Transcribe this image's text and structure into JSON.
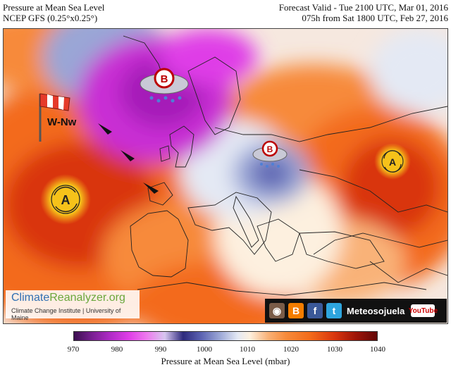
{
  "header": {
    "left_line1": "Pressure at Mean Sea Level",
    "left_line2": "NCEP GFS (0.25°x0.25°)",
    "right_line1": "Forecast Valid - Tue 2100 UTC, Mar 01, 2016",
    "right_line2": "075h from Sat 1800 UTC, Feb 27, 2016"
  },
  "annotations": {
    "wind_label": "W-Nw",
    "high_symbol_letter": "A",
    "low_symbol_letter": "B"
  },
  "watermark": {
    "logo_part1": "Climate",
    "logo_part2": "Reanalyzer.org",
    "subtitle": "Climate Change Institute | University of Maine"
  },
  "social": {
    "name": "Meteosojuela",
    "youtube": "YouTube"
  },
  "colorbar": {
    "ticks": [
      "970",
      "980",
      "990",
      "1000",
      "1010",
      "1020",
      "1030",
      "1040"
    ],
    "label": "Pressure at Mean Sea Level (mbar)"
  },
  "colors": {
    "high": "#f36b1a",
    "very_high": "#d9360e",
    "low": "#c92fd4",
    "neutral": "#eef1f8"
  }
}
